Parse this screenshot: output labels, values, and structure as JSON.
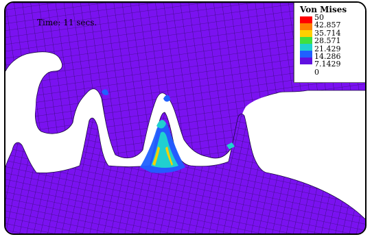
{
  "simulation": {
    "time_label": "Time: 11 secs."
  },
  "legend": {
    "title": "Von Mises",
    "values": [
      "50",
      "42.857",
      "35.714",
      "28.571",
      "21.429",
      "14.286",
      "7.1429",
      "0"
    ],
    "colors": [
      "#ff0000",
      "#ff8000",
      "#ffd000",
      "#40e040",
      "#20d0d0",
      "#2060ff",
      "#6010e0"
    ]
  },
  "colors": {
    "material": "#7a12f0",
    "mesh_line": "#1a0a40",
    "background": "#ffffff"
  }
}
